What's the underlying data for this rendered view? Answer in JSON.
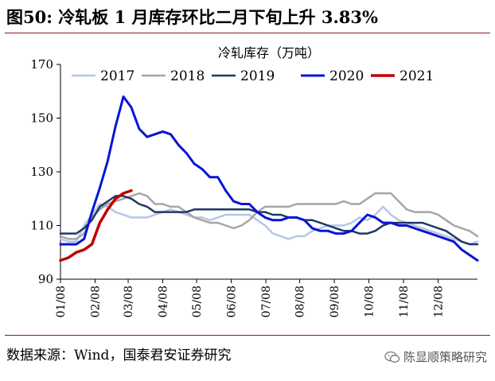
{
  "header": {
    "title": "图50: 冷轧板 1 月库存环比二月下旬上升 3.83%"
  },
  "footer": {
    "source": "数据来源：Wind，国泰君安证券研究",
    "watermark": "陈显顺策略研究",
    "watermark_icon": "wechat-icon"
  },
  "chart_data": {
    "type": "line",
    "title": "冷轧库存（万吨）",
    "xlabel": "",
    "ylabel": "",
    "ylim": [
      90,
      170
    ],
    "yticks": [
      90,
      110,
      130,
      150,
      170
    ],
    "xlim": [
      0,
      53
    ],
    "x_tick_labels": [
      "01/08",
      "02/08",
      "03/08",
      "04/08",
      "05/08",
      "06/08",
      "07/08",
      "08/08",
      "09/08",
      "10/08",
      "11/08",
      "12/08"
    ],
    "x_tick_positions": [
      0,
      4.4,
      8.6,
      13,
      17.3,
      21.7,
      26.1,
      30.4,
      34.8,
      39.2,
      43.6,
      48
    ],
    "legend_position": "top",
    "grid": false,
    "series": [
      {
        "name": "2017",
        "color": "#b4c7e7",
        "width": 2.5,
        "x": [
          0,
          1,
          2,
          3,
          4,
          5,
          6,
          7,
          8,
          9,
          10,
          11,
          12,
          13,
          14,
          15,
          16,
          17,
          18,
          19,
          20,
          21,
          22,
          23,
          24,
          25,
          26,
          27,
          28,
          29,
          30,
          31,
          32,
          33,
          34,
          35,
          36,
          37,
          38,
          39,
          40,
          41,
          42,
          43,
          44,
          45,
          46,
          47,
          48,
          49,
          50,
          51,
          52,
          53
        ],
        "values": [
          105,
          104,
          104,
          110,
          114,
          118,
          117,
          115,
          114,
          113,
          113,
          113,
          114,
          115,
          116,
          115,
          114,
          113,
          113,
          112,
          113,
          114,
          114,
          114,
          114,
          112,
          110,
          107,
          106,
          105,
          106,
          106,
          108,
          109,
          110,
          110,
          110,
          111,
          113,
          112,
          114,
          117,
          114,
          112,
          111,
          110,
          109,
          108,
          107,
          106,
          105,
          104,
          103,
          104
        ]
      },
      {
        "name": "2018",
        "color": "#a6a6a6",
        "width": 2.5,
        "x": [
          0,
          1,
          2,
          3,
          4,
          5,
          6,
          7,
          8,
          9,
          10,
          11,
          12,
          13,
          14,
          15,
          16,
          17,
          18,
          19,
          20,
          21,
          22,
          23,
          24,
          25,
          26,
          27,
          28,
          29,
          30,
          31,
          32,
          33,
          34,
          35,
          36,
          37,
          38,
          39,
          40,
          41,
          42,
          43,
          44,
          45,
          46,
          47,
          48,
          49,
          50,
          51,
          52,
          53
        ],
        "values": [
          106,
          105,
          105,
          107,
          113,
          116,
          118,
          119,
          120,
          121,
          122,
          121,
          118,
          118,
          117,
          117,
          115,
          113,
          112,
          111,
          111,
          110,
          109,
          110,
          112,
          115,
          117,
          117,
          117,
          117,
          118,
          118,
          118,
          118,
          118,
          118,
          119,
          118,
          118,
          120,
          122,
          122,
          122,
          119,
          116,
          115,
          115,
          115,
          114,
          112,
          110,
          109,
          108,
          106
        ]
      },
      {
        "name": "2019",
        "color": "#203864",
        "width": 2.5,
        "x": [
          0,
          1,
          2,
          3,
          4,
          5,
          6,
          7,
          8,
          9,
          10,
          11,
          12,
          13,
          14,
          15,
          16,
          17,
          18,
          19,
          20,
          21,
          22,
          23,
          24,
          25,
          26,
          27,
          28,
          29,
          30,
          31,
          32,
          33,
          34,
          35,
          36,
          37,
          38,
          39,
          40,
          41,
          42,
          43,
          44,
          45,
          46,
          47,
          48,
          49,
          50,
          51,
          52,
          53
        ],
        "values": [
          107,
          107,
          107,
          109,
          112,
          117,
          119,
          121,
          121,
          120,
          118,
          117,
          115,
          115,
          115,
          115,
          115,
          116,
          116,
          116,
          116,
          116,
          116,
          116,
          116,
          115,
          115,
          114,
          114,
          113,
          113,
          112,
          112,
          111,
          110,
          109,
          108,
          108,
          107,
          107,
          108,
          110,
          111,
          111,
          111,
          111,
          111,
          110,
          109,
          108,
          106,
          104,
          103,
          103
        ]
      },
      {
        "name": "2020",
        "color": "#0a14d6",
        "width": 3,
        "x": [
          0,
          1,
          2,
          3,
          4,
          5,
          6,
          7,
          8,
          9,
          10,
          11,
          12,
          13,
          14,
          15,
          16,
          17,
          18,
          19,
          20,
          21,
          22,
          23,
          24,
          25,
          26,
          27,
          28,
          29,
          30,
          31,
          32,
          33,
          34,
          35,
          36,
          37,
          38,
          39,
          40,
          41,
          42,
          43,
          44,
          45,
          46,
          47,
          48,
          49,
          50,
          51,
          52,
          53
        ],
        "values": [
          103,
          103,
          103,
          105,
          115,
          124,
          134,
          147,
          158,
          154,
          146,
          143,
          144,
          145,
          144,
          140,
          137,
          133,
          131,
          128,
          128,
          123,
          119,
          118,
          118,
          115,
          113,
          112,
          112,
          113,
          113,
          112,
          109,
          108,
          108,
          107,
          107,
          108,
          111,
          114,
          113,
          111,
          111,
          110,
          110,
          109,
          108,
          107,
          106,
          105,
          104,
          101,
          99,
          97
        ]
      },
      {
        "name": "2021",
        "color": "#c00000",
        "width": 3.5,
        "x": [
          0,
          1,
          2,
          3,
          4,
          5,
          6,
          7,
          8,
          9
        ],
        "values": [
          97,
          98,
          100,
          101,
          103,
          111,
          116,
          120,
          122,
          123
        ]
      }
    ]
  }
}
